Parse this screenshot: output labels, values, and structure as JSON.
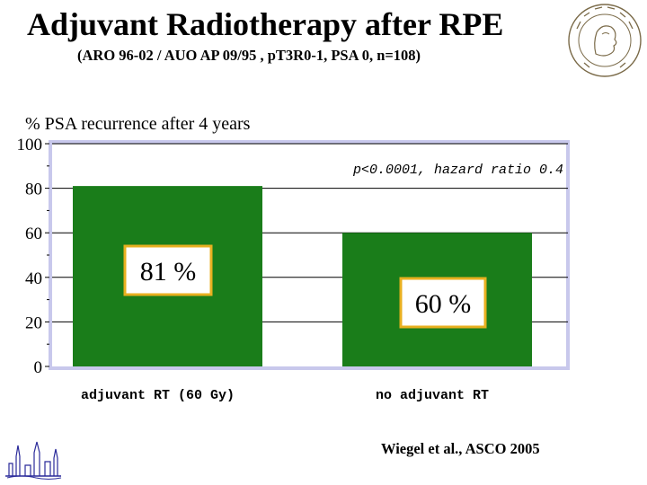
{
  "header": {
    "title": "Adjuvant Radiotherapy after RPE",
    "subtitle": "(ARO 96-02 / AUO AP 09/95 , pT3R0-1, PSA 0, n=108)"
  },
  "footer": {
    "citation": "Wiegel et al., ASCO 2005"
  },
  "colors": {
    "bar": "#1a7d1a",
    "frame": "#c8c8ec",
    "label_box_border": "#e8b020",
    "gridline": "#000000"
  },
  "chart_data": {
    "type": "bar",
    "categories": [
      "adjuvant RT (60 Gy)",
      "no adjuvant RT"
    ],
    "values": [
      81,
      60
    ],
    "value_labels": [
      "81 %",
      "60 %"
    ],
    "ylabel": "% PSA recurrence after 4 years",
    "ylim": [
      0,
      100
    ],
    "yticks": [
      "0",
      "20",
      "40",
      "60",
      "80",
      "100"
    ],
    "annotation": "p<0.0001, hazard ratio 0.4",
    "grid": true,
    "legend": "none"
  }
}
